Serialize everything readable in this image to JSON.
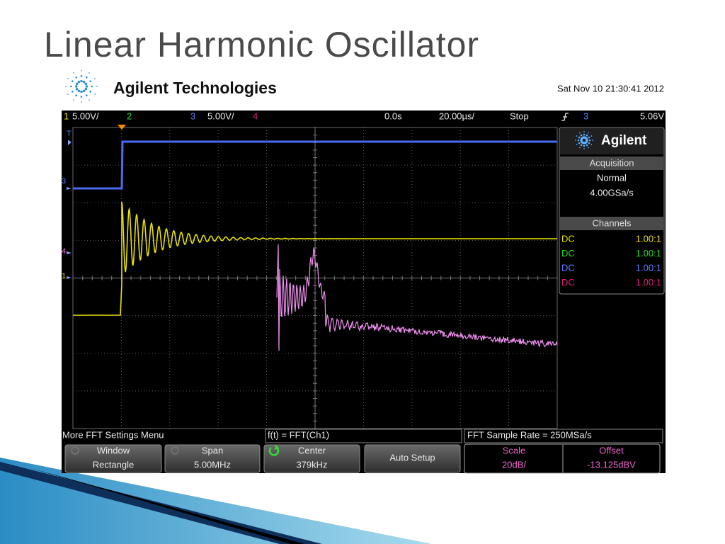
{
  "slide": {
    "title": "Linear Harmonic Oscillator"
  },
  "header": {
    "brand": "Agilent Technologies",
    "datetime": "Sat Nov 10 21:30:41 2012"
  },
  "status_bar": {
    "ch1": "1",
    "ch1_scale": "5.00V/",
    "ch2": "2",
    "ch3": "3",
    "ch3_scale": "5.00V/",
    "ch4": "4",
    "delay": "0.0s",
    "timebase": "20.00µs/",
    "run_state": "Stop",
    "trigger_source": "3",
    "trigger_level": "5.06V"
  },
  "markers": [
    "T",
    "3",
    "4",
    "1"
  ],
  "side_panel": {
    "logo": "Agilent",
    "acquisition": {
      "heading": "Acquisition",
      "mode": "Normal",
      "sample_rate": "4.00GSa/s"
    },
    "channels": {
      "heading": "Channels",
      "rows": [
        [
          "DC",
          "1.00:1"
        ],
        [
          "DC",
          "1.00:1"
        ],
        [
          "DC",
          "1.00:1"
        ],
        [
          "DC",
          "1.00:1"
        ]
      ]
    }
  },
  "menu_bar": {
    "menu": "More FFT Settings Menu",
    "function": "f(t) = FFT(Ch1)",
    "sample_rate": "FFT Sample Rate = 250MSa/s"
  },
  "softkeys": [
    {
      "label": "Window",
      "value": "Rectangle"
    },
    {
      "label": "Span",
      "value": "5.00MHz"
    },
    {
      "label": "Center",
      "value": "379kHz"
    },
    {
      "label": "Auto Setup"
    },
    {
      "label": "Scale",
      "value": "20dB/"
    },
    {
      "label": "Offset",
      "value": "-13.125dBV"
    }
  ]
}
